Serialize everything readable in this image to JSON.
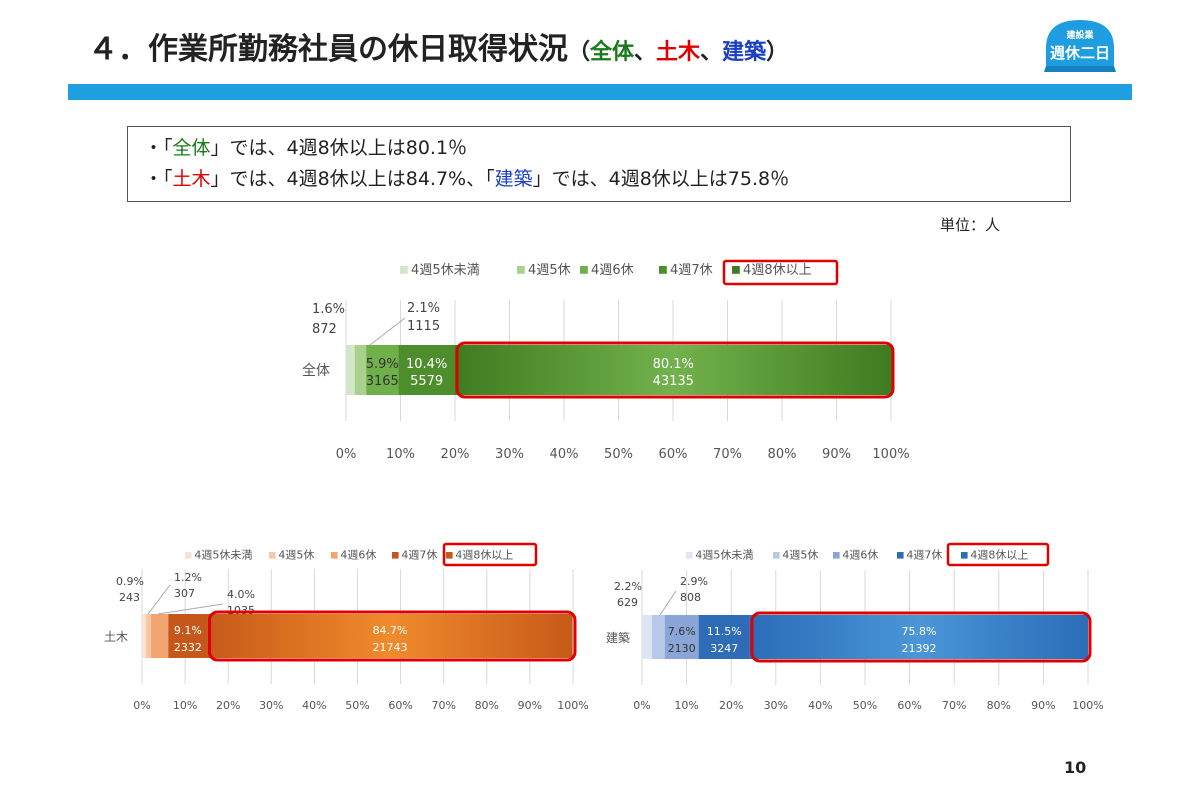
{
  "header": {
    "title_main": "４．作業所勤務社員の休日取得状況",
    "title_open": "（",
    "title_all": "全体",
    "title_sep1": "、",
    "title_civil": "土木",
    "title_sep2": "、",
    "title_arch": "建築",
    "title_close": "）"
  },
  "logo": {
    "top": "建設業",
    "main": "週休二日"
  },
  "summary": {
    "line1": {
      "bullet": "・",
      "open": "「",
      "kw": "全体",
      "rest": "」では、4週8休以上は80.1％"
    },
    "line2": {
      "bullet": "・",
      "open": "「",
      "kw1": "土木",
      "mid": "」では、4週8休以上は84.7%、",
      "open2": "「",
      "kw2": "建築",
      "rest": "」では、4週8休以上は75.8％"
    }
  },
  "unit": "単位：人",
  "page_number": "10",
  "chart_data": [
    {
      "type": "bar",
      "stacked": "percent",
      "orientation": "horizontal",
      "categories": [
        "全体"
      ],
      "xlim": [
        0,
        100
      ],
      "xticks": [
        "0%",
        "10%",
        "20%",
        "30%",
        "40%",
        "50%",
        "60%",
        "70%",
        "80%",
        "90%",
        "100%"
      ],
      "legend_position": "top",
      "highlight_series": "4週8休以上",
      "series": [
        {
          "name": "4週5休未満",
          "percent": 1.6,
          "count": 872,
          "pct_label": "1.6%",
          "count_label": "872",
          "color": "#d3e6c6"
        },
        {
          "name": "4週5休",
          "percent": 2.1,
          "count": 1115,
          "pct_label": "2.1%",
          "count_label": "1115",
          "color": "#a9d18e"
        },
        {
          "name": "4週6休",
          "percent": 5.9,
          "count": 3165,
          "pct_label": "5.9%",
          "count_label": "3165",
          "color": "#6fb04a"
        },
        {
          "name": "4週7休",
          "percent": 10.4,
          "count": 5579,
          "pct_label": "10.4%",
          "count_label": "5579",
          "color": "#4e8d2c"
        },
        {
          "name": "4週8休以上",
          "percent": 80.1,
          "count": 43135,
          "pct_label": "80.1%",
          "count_label": "43135",
          "color": "#3f7b20"
        }
      ]
    },
    {
      "type": "bar",
      "stacked": "percent",
      "orientation": "horizontal",
      "categories": [
        "土木"
      ],
      "xlim": [
        0,
        100
      ],
      "xticks": [
        "0%",
        "10%",
        "20%",
        "30%",
        "40%",
        "50%",
        "60%",
        "70%",
        "80%",
        "90%",
        "100%"
      ],
      "legend_position": "top",
      "highlight_series": "4週8休以上",
      "series": [
        {
          "name": "4週5休未満",
          "percent": 0.9,
          "count": 243,
          "pct_label": "0.9%",
          "count_label": "243",
          "color": "#fbe2d2"
        },
        {
          "name": "4週5休",
          "percent": 1.2,
          "count": 307,
          "pct_label": "1.2%",
          "count_label": "307",
          "color": "#f7c7a6"
        },
        {
          "name": "4週6休",
          "percent": 4.0,
          "count": 1035,
          "pct_label": "4.0%",
          "count_label": "1035",
          "color": "#f0a470"
        },
        {
          "name": "4週7休",
          "percent": 9.1,
          "count": 2332,
          "pct_label": "9.1%",
          "count_label": "2332",
          "color": "#c4581a"
        },
        {
          "name": "4週8休以上",
          "percent": 84.7,
          "count": 21743,
          "pct_label": "84.7%",
          "count_label": "21743",
          "color": "#c65a18"
        }
      ]
    },
    {
      "type": "bar",
      "stacked": "percent",
      "orientation": "horizontal",
      "categories": [
        "建築"
      ],
      "xlim": [
        0,
        100
      ],
      "xticks": [
        "0%",
        "10%",
        "20%",
        "30%",
        "40%",
        "50%",
        "60%",
        "70%",
        "80%",
        "90%",
        "100%"
      ],
      "legend_position": "top",
      "highlight_series": "4週8休以上",
      "series": [
        {
          "name": "4週5休未満",
          "percent": 2.2,
          "count": 629,
          "pct_label": "2.2%",
          "count_label": "629",
          "color": "#dde6f4"
        },
        {
          "name": "4週5休",
          "percent": 2.9,
          "count": 808,
          "pct_label": "2.9%",
          "count_label": "808",
          "color": "#b7c8e8"
        },
        {
          "name": "4週6休",
          "percent": 7.6,
          "count": 2130,
          "pct_label": "7.6%",
          "count_label": "2130",
          "color": "#8aa5d8"
        },
        {
          "name": "4週7休",
          "percent": 11.5,
          "count": 3247,
          "pct_label": "11.5%",
          "count_label": "3247",
          "color": "#2f6cb8"
        },
        {
          "name": "4週8休以上",
          "percent": 75.8,
          "count": 21392,
          "pct_label": "75.8%",
          "count_label": "21392",
          "color": "#2a6db8"
        }
      ]
    }
  ]
}
